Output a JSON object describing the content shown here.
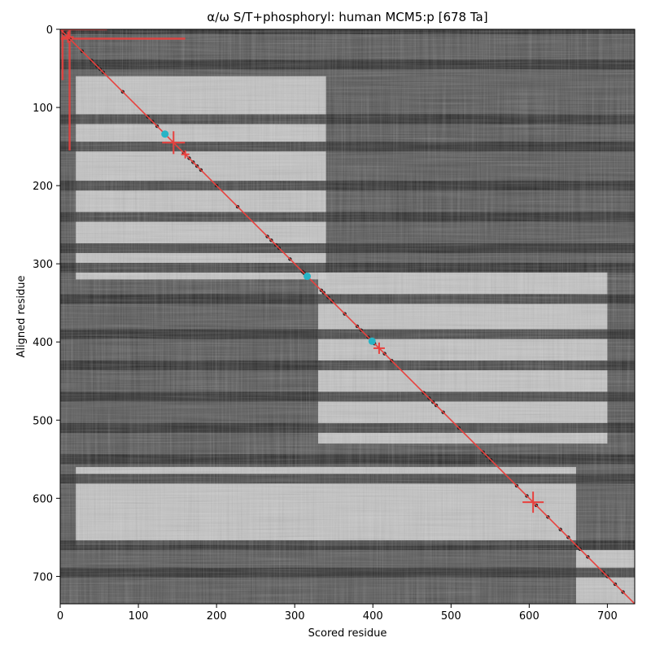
{
  "chart_data": {
    "type": "heatmap",
    "title": "α/ω S/T+phosphoryl: human MCM5:p [678 Ta]",
    "xlabel": "Scored residue",
    "ylabel": "Aligned residue",
    "xlim": [
      0,
      735
    ],
    "ylim": [
      735,
      0
    ],
    "xticks": [
      0,
      100,
      200,
      300,
      400,
      500,
      600,
      700
    ],
    "yticks": [
      0,
      100,
      200,
      300,
      400,
      500,
      600,
      700
    ],
    "colormap": "grayscale",
    "diagonal_color": "#e8413e",
    "dark_bands_y": [
      0,
      45,
      115,
      150,
      200,
      240,
      280,
      305,
      345,
      390,
      430,
      470,
      510,
      550,
      575,
      660,
      695
    ],
    "light_blocks": [
      {
        "x": [
          20,
          340
        ],
        "y": [
          60,
          320
        ]
      },
      {
        "x": [
          330,
          700
        ],
        "y": [
          310,
          530
        ]
      },
      {
        "x": [
          20,
          660
        ],
        "y": [
          560,
          660
        ]
      },
      {
        "x": [
          660,
          735
        ],
        "y": [
          665,
          735
        ]
      }
    ],
    "diagonal_points": [
      5,
      12,
      28,
      40,
      47,
      51,
      55,
      80,
      112,
      118,
      124,
      158,
      165,
      170,
      175,
      180,
      200,
      227,
      265,
      270,
      276,
      280,
      294,
      310,
      312,
      334,
      337,
      343,
      348,
      364,
      380,
      385,
      394,
      402,
      415,
      424,
      465,
      472,
      477,
      481,
      490,
      510,
      541,
      546,
      551,
      584,
      597,
      609,
      624,
      640,
      650,
      660,
      665,
      675,
      695,
      700,
      710,
      720
    ],
    "cyan_markers": [
      134,
      316,
      399
    ],
    "red_crosses": [
      {
        "x": 145,
        "y": 145,
        "size": 14
      },
      {
        "x": 408,
        "y": 408,
        "size": 7
      },
      {
        "x": 605,
        "y": 605,
        "size": 13
      },
      {
        "x": 10,
        "y": 10,
        "size": 7
      },
      {
        "x": 160,
        "y": 160,
        "size": 5
      }
    ],
    "corner_lines": [
      {
        "axis": "h",
        "at": 12,
        "from": 0,
        "to": 160
      },
      {
        "axis": "h",
        "at": 0,
        "from": 0,
        "to": 60
      },
      {
        "axis": "v",
        "at": 12,
        "from": 0,
        "to": 155
      },
      {
        "axis": "v",
        "at": 3,
        "from": 0,
        "to": 65
      }
    ]
  }
}
